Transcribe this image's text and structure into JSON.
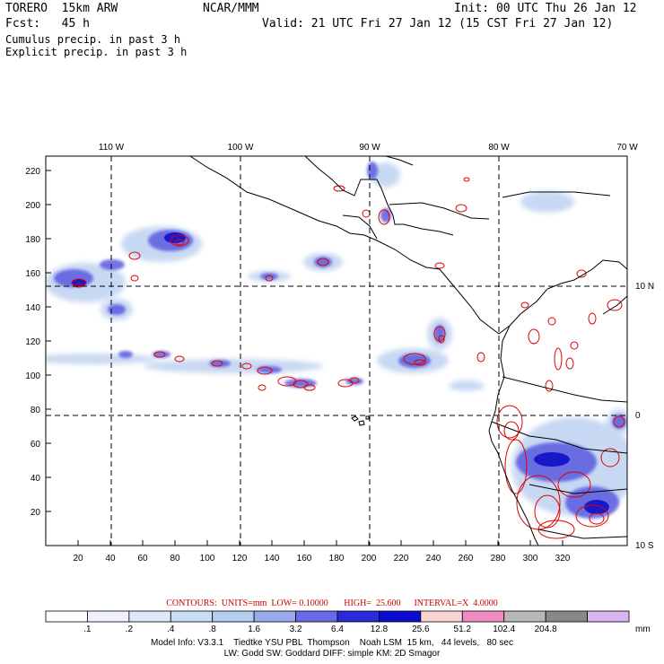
{
  "header": {
    "model": "TORERO  15km ARW",
    "org": "NCAR/MMM",
    "init": "Init: 00 UTC Thu 26 Jan 12",
    "fcst": "Fcst:   45 h",
    "valid": "Valid: 21 UTC Fri 27 Jan 12 (15 CST Fri 27 Jan 12)",
    "cumulus": "Cumulus precip. in past 3 h",
    "explicit": "Explicit precip. in past 3 h"
  },
  "colors": {
    "cumulus": "#1a1aa6",
    "explicit": "#e00000",
    "coast": "#000000",
    "grid": "#000000"
  },
  "map": {
    "lon_labels": [
      "110 W",
      "100 W",
      "90 W",
      "80 W",
      "70 W"
    ],
    "lat_labels": [
      "10 N",
      "0",
      "10 S"
    ],
    "x_ticks": [
      20,
      40,
      60,
      80,
      100,
      120,
      140,
      160,
      180,
      200,
      220,
      240,
      260,
      280,
      300,
      320
    ],
    "y_ticks": [
      20,
      40,
      60,
      80,
      100,
      120,
      140,
      160,
      180,
      200,
      220
    ]
  },
  "legend": {
    "contours_label": "CONTOURS:  UNITS=mm  LOW= 0.10000       HIGH=  25.600      INTERVAL=X  4.0000",
    "unit": "mm",
    "breaks": [
      ".1",
      ".2",
      ".4",
      ".8",
      "1.6",
      "3.2",
      "6.4",
      "12.8",
      "25.6",
      "51.2",
      "102.4",
      "204.8"
    ],
    "colors": [
      "#ffffff",
      "#eef3fb",
      "#dde8f8",
      "#c8dcf4",
      "#b4cdf0",
      "#9aa9ee",
      "#6a6ae8",
      "#2a2ad8",
      "#0c0ccc",
      "#fad4d4",
      "#f08cc0",
      "#b8b8b8",
      "#888888",
      "#d8b4f0"
    ]
  },
  "footer": {
    "line1": "Model Info: V3.3.1    Tiedtke YSU PBL  Thompson    Noah LSM  15 km,   44 levels,   80 sec",
    "line2": "LW: Godd SW: Goddard DIFF: simple KM: 2D Smagor"
  }
}
